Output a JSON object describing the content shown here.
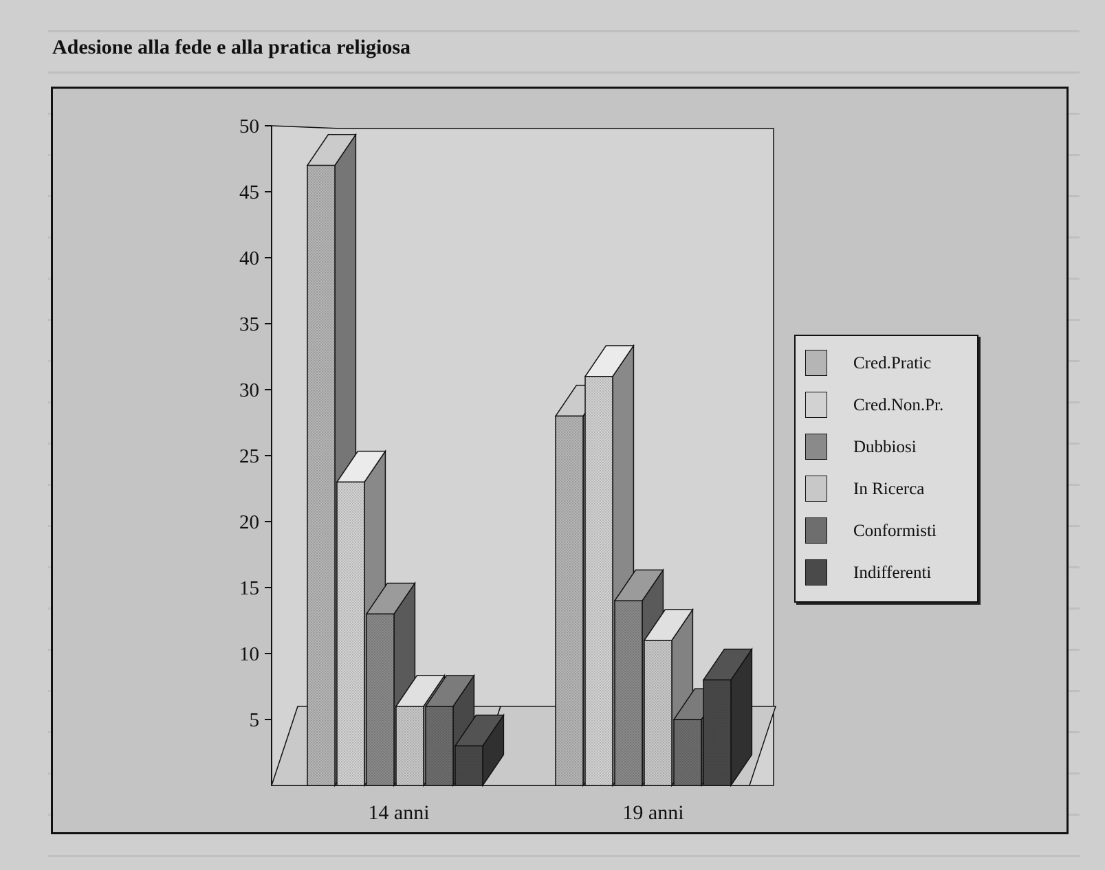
{
  "page": {
    "title": "Adesione alla fede e alla pratica religiosa"
  },
  "chart_data": {
    "type": "bar",
    "title": "Adesione alla fede e alla pratica religiosa",
    "xlabel": "",
    "ylabel": "",
    "ylim": [
      0,
      50
    ],
    "yticks": [
      5,
      10,
      15,
      20,
      25,
      30,
      35,
      40,
      45,
      50
    ],
    "grid": false,
    "legend_position": "right",
    "rendering": "3d-bars",
    "categories": [
      "14 anni",
      "19 anni"
    ],
    "series": [
      {
        "name": "Cred.Pratic",
        "values": [
          47,
          28
        ],
        "color": "#b5b5b5"
      },
      {
        "name": "Cred.Non.Pr.",
        "values": [
          23,
          31
        ],
        "color": "#d2d2d2"
      },
      {
        "name": "Dubbiosi",
        "values": [
          13,
          14
        ],
        "color": "#8a8a8a"
      },
      {
        "name": "In Ricerca",
        "values": [
          6,
          11
        ],
        "color": "#c8c8c8"
      },
      {
        "name": "Conformisti",
        "values": [
          6,
          5
        ],
        "color": "#6e6e6e"
      },
      {
        "name": "Indifferenti",
        "values": [
          3,
          8
        ],
        "color": "#4a4a4a"
      }
    ]
  }
}
